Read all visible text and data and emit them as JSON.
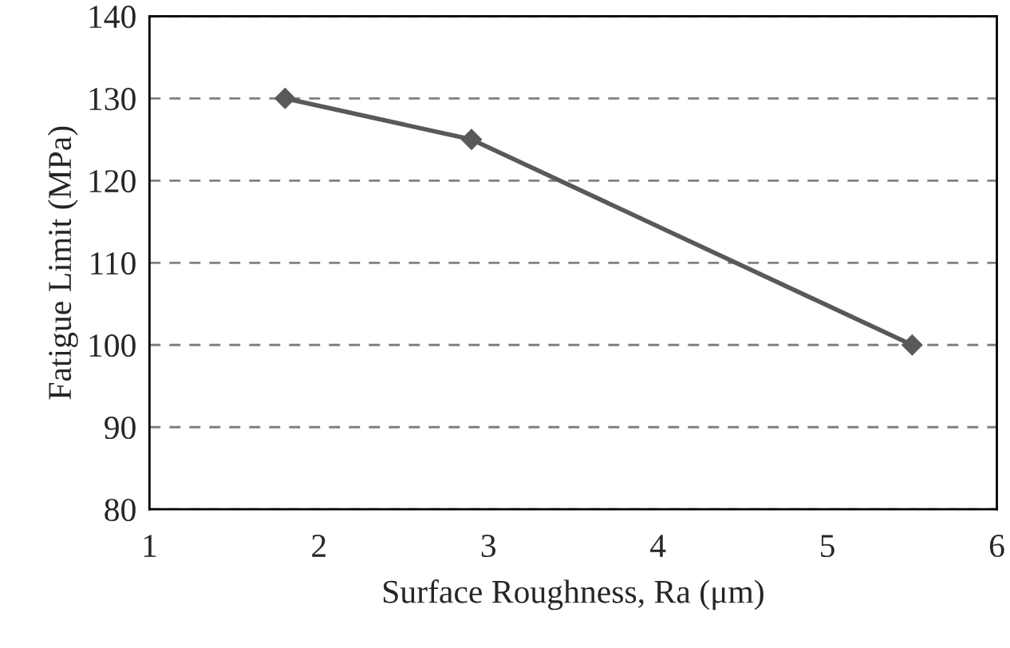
{
  "chart_data": {
    "type": "line",
    "xlabel": "Surface Roughness, Ra (μm)",
    "ylabel": "Fatigue Limit (MPa)",
    "x": [
      1.8,
      2.9,
      5.5
    ],
    "series": [
      {
        "color": "#595959",
        "values": [
          130,
          125,
          100
        ]
      }
    ],
    "xlim": [
      1,
      6
    ],
    "xticks": [
      1,
      2,
      3,
      4,
      5,
      6
    ],
    "ylim": [
      80,
      140
    ],
    "yticks": [
      80,
      90,
      100,
      110,
      120,
      130,
      140
    ],
    "grid": "y",
    "marker": "diamond",
    "line_style": "solid"
  }
}
